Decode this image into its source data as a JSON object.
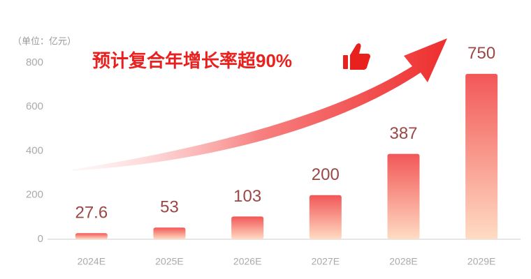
{
  "chart_data": {
    "type": "bar",
    "unit_label": "（单位：亿元）",
    "annotation": "预计复合年增长率超90%",
    "categories": [
      "2024E",
      "2025E",
      "2026E",
      "2027E",
      "2028E",
      "2029E"
    ],
    "values": [
      27.6,
      53,
      103,
      200,
      387,
      750
    ],
    "color": "#f25757",
    "ylim": [
      0,
      800
    ],
    "yticks": [
      0,
      200,
      400,
      600,
      800
    ],
    "grid": false
  }
}
